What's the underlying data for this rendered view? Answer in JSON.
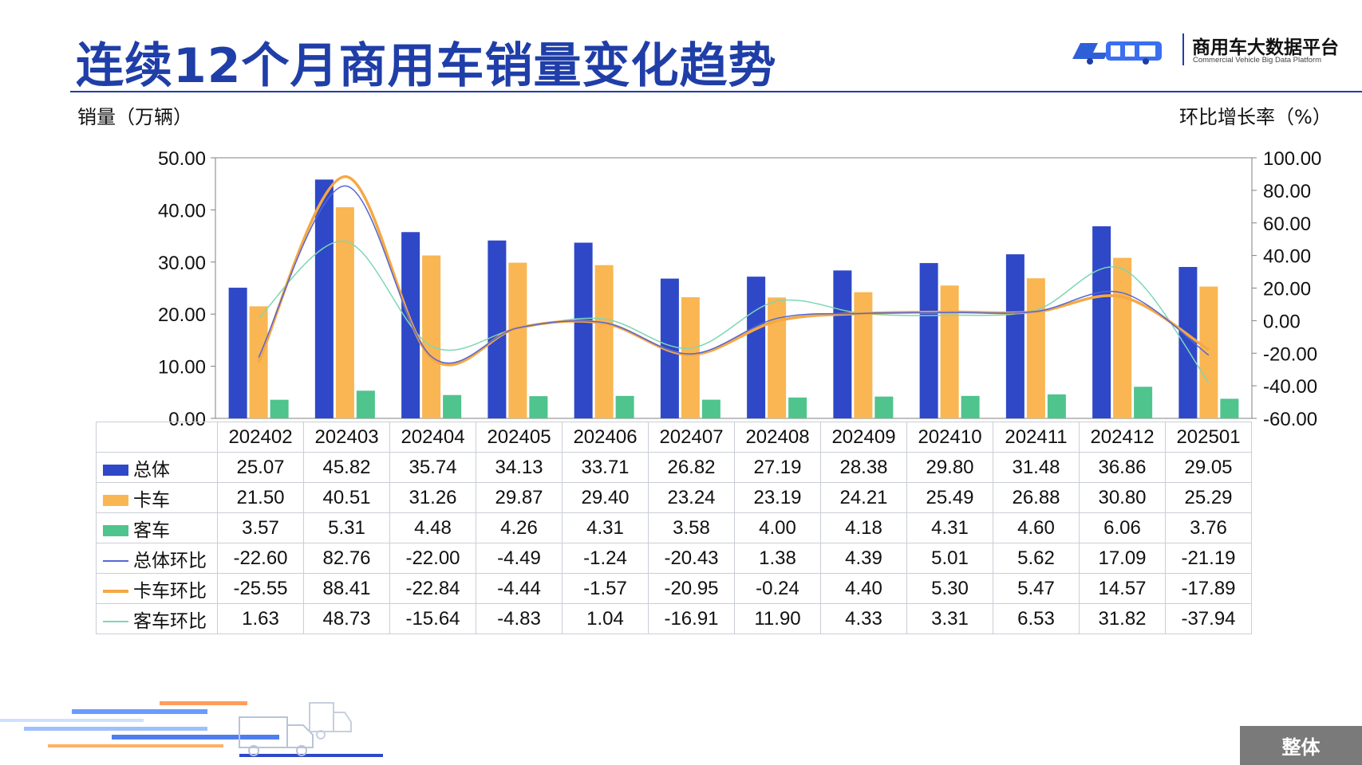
{
  "header": {
    "title": "连续12个月商用车销量变化趋势",
    "logo_name": "商用车大数据平台",
    "logo_sub": "Commercial Vehicle Big Data Platform"
  },
  "axis_labels": {
    "left": "销量（万辆）",
    "right": "环比增长率（%）"
  },
  "scope_tab": "整体",
  "colors": {
    "title": "#1f3ea8",
    "total": "#2f48c8",
    "truck": "#f9b653",
    "bus": "#4fc48d",
    "total_mom": "#5466d6",
    "truck_mom": "#f5a843",
    "bus_mom": "#7fd6b4"
  },
  "chart_data": {
    "type": "bar",
    "title": "连续12个月商用车销量变化趋势",
    "categories": [
      "202402",
      "202403",
      "202404",
      "202405",
      "202406",
      "202407",
      "202408",
      "202409",
      "202410",
      "202411",
      "202412",
      "202501"
    ],
    "ylabel": "销量（万辆）",
    "y2label": "环比增长率（%）",
    "ylim": [
      0,
      50
    ],
    "y2lim": [
      -60,
      100
    ],
    "yticks": [
      "0.00",
      "10.00",
      "20.00",
      "30.00",
      "40.00",
      "50.00"
    ],
    "y2ticks": [
      "-60.00",
      "-40.00",
      "-20.00",
      "0.00",
      "20.00",
      "40.00",
      "60.00",
      "80.00",
      "100.00"
    ],
    "legend_placement": "table",
    "bar_series": [
      {
        "name": "总体",
        "color": "#2f48c8",
        "values": [
          "25.07",
          "45.82",
          "35.74",
          "34.13",
          "33.71",
          "26.82",
          "27.19",
          "28.38",
          "29.80",
          "31.48",
          "36.86",
          "29.05"
        ]
      },
      {
        "name": "卡车",
        "color": "#f9b653",
        "values": [
          "21.50",
          "40.51",
          "31.26",
          "29.87",
          "29.40",
          "23.24",
          "23.19",
          "24.21",
          "25.49",
          "26.88",
          "30.80",
          "25.29"
        ]
      },
      {
        "name": "客车",
        "color": "#4fc48d",
        "values": [
          "3.57",
          "5.31",
          "4.48",
          "4.26",
          "4.31",
          "3.58",
          "4.00",
          "4.18",
          "4.31",
          "4.60",
          "6.06",
          "3.76"
        ]
      }
    ],
    "line_series": [
      {
        "name": "总体环比",
        "color": "#5466d6",
        "values": [
          "-22.60",
          "82.76",
          "-22.00",
          "-4.49",
          "-1.24",
          "-20.43",
          "1.38",
          "4.39",
          "5.01",
          "5.62",
          "17.09",
          "-21.19"
        ]
      },
      {
        "name": "卡车环比",
        "color": "#f5a843",
        "values": [
          "-25.55",
          "88.41",
          "-22.84",
          "-4.44",
          "-1.57",
          "-20.95",
          "-0.24",
          "4.40",
          "5.30",
          "5.47",
          "14.57",
          "-17.89"
        ]
      },
      {
        "name": "客车环比",
        "color": "#7fd6b4",
        "values": [
          "1.63",
          "48.73",
          "-15.64",
          "-4.83",
          "1.04",
          "-16.91",
          "11.90",
          "4.33",
          "3.31",
          "6.53",
          "31.82",
          "-37.94"
        ]
      }
    ]
  }
}
